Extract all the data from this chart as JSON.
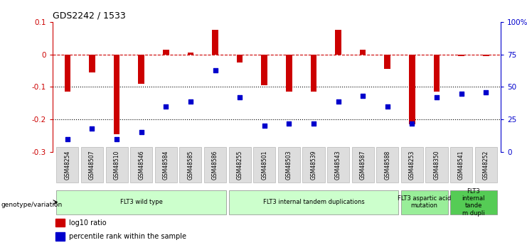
{
  "title": "GDS2242 / 1533",
  "samples": [
    "GSM48254",
    "GSM48507",
    "GSM48510",
    "GSM48546",
    "GSM48584",
    "GSM48585",
    "GSM48586",
    "GSM48255",
    "GSM48501",
    "GSM48503",
    "GSM48539",
    "GSM48543",
    "GSM48587",
    "GSM48588",
    "GSM48253",
    "GSM48350",
    "GSM48541",
    "GSM48252"
  ],
  "log10_ratio": [
    -0.115,
    -0.055,
    -0.245,
    -0.09,
    0.015,
    0.005,
    0.075,
    -0.025,
    -0.095,
    -0.115,
    -0.115,
    0.075,
    0.015,
    -0.045,
    -0.215,
    -0.115,
    -0.005,
    -0.005
  ],
  "percentile_rank": [
    10,
    18,
    10,
    15,
    35,
    39,
    63,
    42,
    20,
    22,
    22,
    39,
    43,
    35,
    22,
    42,
    45,
    46
  ],
  "bar_color": "#cc0000",
  "dot_color": "#0000cc",
  "ylim_left": [
    -0.3,
    0.1
  ],
  "ylim_right": [
    0,
    100
  ],
  "right_yticks": [
    0,
    25,
    50,
    75,
    100
  ],
  "right_yticklabels": [
    "0",
    "25",
    "50",
    "75",
    "100%"
  ],
  "left_yticks": [
    -0.3,
    -0.2,
    -0.1,
    0.0,
    0.1
  ],
  "hline_y": 0.0,
  "dotted_lines": [
    -0.1,
    -0.2
  ],
  "groups": [
    {
      "label": "FLT3 wild type",
      "start": 0,
      "end": 7,
      "color": "#ccffcc"
    },
    {
      "label": "FLT3 internal tandem duplications",
      "start": 7,
      "end": 14,
      "color": "#ccffcc"
    },
    {
      "label": "FLT3 aspartic acid\nmutation",
      "start": 14,
      "end": 16,
      "color": "#99ee99"
    },
    {
      "label": "FLT3\ninternal\ntande\nm dupli",
      "start": 16,
      "end": 18,
      "color": "#55cc55"
    }
  ],
  "legend_items": [
    {
      "label": "log10 ratio",
      "color": "#cc0000"
    },
    {
      "label": "percentile rank within the sample",
      "color": "#0000cc"
    }
  ],
  "genotype_label": "genotype/variation"
}
